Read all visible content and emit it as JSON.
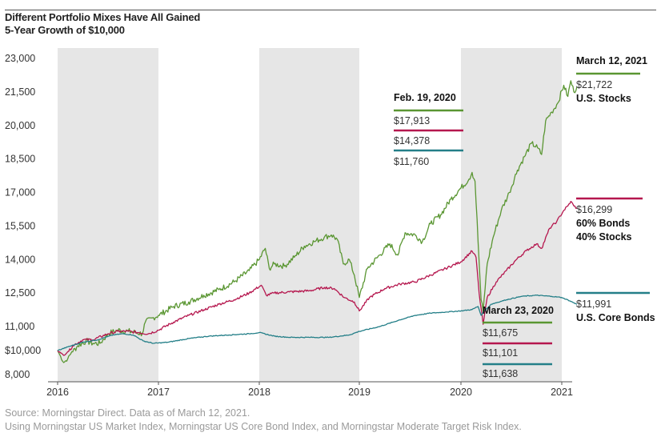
{
  "header": {
    "title": "Different Portfolio Mixes Have All Gained",
    "subtitle": "5-Year Growth of $10,000"
  },
  "footer": {
    "source": "Source: Morningstar Direct.  Data as of March 12, 2021.",
    "notes": "Using Morningstar US Market Index, Morningstar US Core Bond Index, and Morningstar Moderate Target Risk Index."
  },
  "colors": {
    "stocks": "#5a9632",
    "balanced": "#b5174e",
    "bonds": "#247f88",
    "band": "#e6e6e6"
  },
  "chart_data": {
    "type": "line",
    "title": "Different Portfolio Mixes Have All Gained",
    "subtitle": "5-Year Growth of $10,000",
    "x_ticks": [
      "2016",
      "2017",
      "2018",
      "2019",
      "2020",
      "2021"
    ],
    "y_ticks": [
      {
        "value": 23000,
        "label": "23,000"
      },
      {
        "value": 21500,
        "label": "21,500"
      },
      {
        "value": 20000,
        "label": "20,000"
      },
      {
        "value": 18500,
        "label": "18,500"
      },
      {
        "value": 17000,
        "label": "17,000"
      },
      {
        "value": 15500,
        "label": "15,500"
      },
      {
        "value": 14000,
        "label": "14,000"
      },
      {
        "value": 12500,
        "label": "12,500"
      },
      {
        "value": 11000,
        "label": "11,000"
      },
      {
        "value": 10000,
        "label": "$10,000"
      },
      {
        "value": 8000,
        "label": "8,000"
      }
    ],
    "ylim": [
      7800,
      23300
    ],
    "xlim": [
      2015.98,
      2021.2
    ],
    "shaded_years": [
      [
        2016,
        2017
      ],
      [
        2018,
        2019
      ],
      [
        2020,
        2021
      ]
    ],
    "series": [
      {
        "name": "U.S. Stocks",
        "key": "stocks",
        "points": [
          [
            2016.0,
            10000
          ],
          [
            2016.03,
            9500
          ],
          [
            2016.06,
            9000
          ],
          [
            2016.1,
            9300
          ],
          [
            2016.14,
            9900
          ],
          [
            2016.2,
            10200
          ],
          [
            2016.28,
            10400
          ],
          [
            2016.35,
            10300
          ],
          [
            2016.42,
            10300
          ],
          [
            2016.5,
            10700
          ],
          [
            2016.6,
            10850
          ],
          [
            2016.7,
            10800
          ],
          [
            2016.78,
            10750
          ],
          [
            2016.84,
            10700
          ],
          [
            2016.87,
            11200
          ],
          [
            2016.95,
            11400
          ],
          [
            2017.0,
            11500
          ],
          [
            2017.15,
            11900
          ],
          [
            2017.3,
            12100
          ],
          [
            2017.45,
            12400
          ],
          [
            2017.6,
            12650
          ],
          [
            2017.75,
            13000
          ],
          [
            2017.9,
            13500
          ],
          [
            2018.0,
            14000
          ],
          [
            2018.06,
            14500
          ],
          [
            2018.1,
            13600
          ],
          [
            2018.15,
            13800
          ],
          [
            2018.25,
            13700
          ],
          [
            2018.35,
            14100
          ],
          [
            2018.45,
            14600
          ],
          [
            2018.55,
            14800
          ],
          [
            2018.65,
            15000
          ],
          [
            2018.72,
            15100
          ],
          [
            2018.78,
            14900
          ],
          [
            2018.84,
            13800
          ],
          [
            2018.9,
            14000
          ],
          [
            2018.95,
            13300
          ],
          [
            2019.0,
            12300
          ],
          [
            2019.08,
            13600
          ],
          [
            2019.2,
            14200
          ],
          [
            2019.3,
            14700
          ],
          [
            2019.38,
            14200
          ],
          [
            2019.45,
            15200
          ],
          [
            2019.55,
            15100
          ],
          [
            2019.62,
            14800
          ],
          [
            2019.7,
            15600
          ],
          [
            2019.8,
            16000
          ],
          [
            2019.9,
            16700
          ],
          [
            2020.0,
            17200
          ],
          [
            2020.08,
            17600
          ],
          [
            2020.11,
            17900
          ],
          [
            2020.14,
            17500
          ],
          [
            2020.17,
            14800
          ],
          [
            2020.2,
            12200
          ],
          [
            2020.22,
            11675
          ],
          [
            2020.26,
            13800
          ],
          [
            2020.32,
            15000
          ],
          [
            2020.4,
            16200
          ],
          [
            2020.48,
            17000
          ],
          [
            2020.56,
            18000
          ],
          [
            2020.63,
            18600
          ],
          [
            2020.7,
            19200
          ],
          [
            2020.76,
            19000
          ],
          [
            2020.8,
            18700
          ],
          [
            2020.84,
            20200
          ],
          [
            2020.9,
            20600
          ],
          [
            2020.96,
            21000
          ],
          [
            2021.02,
            21800
          ],
          [
            2021.06,
            21300
          ],
          [
            2021.09,
            22000
          ],
          [
            2021.12,
            21500
          ],
          [
            2021.15,
            21722
          ]
        ]
      },
      {
        "name": "60% Bonds 40% Stocks",
        "key": "balanced",
        "points": [
          [
            2016.0,
            10000
          ],
          [
            2016.03,
            9800
          ],
          [
            2016.06,
            9600
          ],
          [
            2016.1,
            9900
          ],
          [
            2016.15,
            10200
          ],
          [
            2016.25,
            10450
          ],
          [
            2016.35,
            10450
          ],
          [
            2016.5,
            10700
          ],
          [
            2016.6,
            10800
          ],
          [
            2016.7,
            10800
          ],
          [
            2016.8,
            10750
          ],
          [
            2016.9,
            10700
          ],
          [
            2017.0,
            10850
          ],
          [
            2017.15,
            11200
          ],
          [
            2017.3,
            11500
          ],
          [
            2017.45,
            11750
          ],
          [
            2017.6,
            12000
          ],
          [
            2017.75,
            12200
          ],
          [
            2017.9,
            12500
          ],
          [
            2018.02,
            12850
          ],
          [
            2018.07,
            12400
          ],
          [
            2018.15,
            12500
          ],
          [
            2018.3,
            12550
          ],
          [
            2018.5,
            12600
          ],
          [
            2018.65,
            12750
          ],
          [
            2018.75,
            12700
          ],
          [
            2018.85,
            12300
          ],
          [
            2018.95,
            12100
          ],
          [
            2019.0,
            11700
          ],
          [
            2019.1,
            12300
          ],
          [
            2019.25,
            12700
          ],
          [
            2019.4,
            12900
          ],
          [
            2019.55,
            13000
          ],
          [
            2019.7,
            13300
          ],
          [
            2019.85,
            13600
          ],
          [
            2020.0,
            13900
          ],
          [
            2020.11,
            14378
          ],
          [
            2020.15,
            14100
          ],
          [
            2020.18,
            12500
          ],
          [
            2020.22,
            11101
          ],
          [
            2020.26,
            12300
          ],
          [
            2020.35,
            13000
          ],
          [
            2020.45,
            13500
          ],
          [
            2020.55,
            14000
          ],
          [
            2020.65,
            14400
          ],
          [
            2020.75,
            14700
          ],
          [
            2020.8,
            14500
          ],
          [
            2020.88,
            15400
          ],
          [
            2020.95,
            15700
          ],
          [
            2021.02,
            16200
          ],
          [
            2021.06,
            16400
          ],
          [
            2021.09,
            16600
          ],
          [
            2021.12,
            16400
          ],
          [
            2021.15,
            16299
          ]
        ]
      },
      {
        "name": "U.S. Core Bonds",
        "key": "bonds",
        "points": [
          [
            2016.0,
            10000
          ],
          [
            2016.1,
            10150
          ],
          [
            2016.25,
            10350
          ],
          [
            2016.4,
            10450
          ],
          [
            2016.55,
            10650
          ],
          [
            2016.65,
            10700
          ],
          [
            2016.75,
            10650
          ],
          [
            2016.85,
            10400
          ],
          [
            2016.95,
            10300
          ],
          [
            2017.1,
            10350
          ],
          [
            2017.3,
            10500
          ],
          [
            2017.5,
            10600
          ],
          [
            2017.7,
            10650
          ],
          [
            2017.9,
            10700
          ],
          [
            2018.0,
            10750
          ],
          [
            2018.15,
            10600
          ],
          [
            2018.3,
            10550
          ],
          [
            2018.5,
            10550
          ],
          [
            2018.7,
            10550
          ],
          [
            2018.9,
            10650
          ],
          [
            2019.0,
            10800
          ],
          [
            2019.2,
            11000
          ],
          [
            2019.4,
            11300
          ],
          [
            2019.55,
            11500
          ],
          [
            2019.7,
            11600
          ],
          [
            2019.85,
            11650
          ],
          [
            2020.0,
            11700
          ],
          [
            2020.11,
            11760
          ],
          [
            2020.17,
            11900
          ],
          [
            2020.2,
            11500
          ],
          [
            2020.22,
            11638
          ],
          [
            2020.3,
            12000
          ],
          [
            2020.45,
            12200
          ],
          [
            2020.6,
            12350
          ],
          [
            2020.75,
            12400
          ],
          [
            2020.9,
            12350
          ],
          [
            2021.0,
            12300
          ],
          [
            2021.08,
            12150
          ],
          [
            2021.15,
            11991
          ]
        ]
      }
    ],
    "annotations": [
      {
        "name": "feb-2020",
        "date": "Feb. 19, 2020",
        "values": [
          {
            "text": "$17,913",
            "key": "stocks"
          },
          {
            "text": "$14,378",
            "key": "balanced"
          },
          {
            "text": "$11,760",
            "key": "bonds"
          }
        ]
      },
      {
        "name": "mar-2020",
        "date": "March 23, 2020",
        "values": [
          {
            "text": "$11,675",
            "key": "stocks"
          },
          {
            "text": "$11,101",
            "key": "balanced"
          },
          {
            "text": "$11,638",
            "key": "bonds"
          }
        ]
      },
      {
        "name": "mar-2021",
        "date": "March 12, 2021",
        "values": [
          {
            "text": "$21,722",
            "key": "stocks",
            "label": "U.S. Stocks"
          },
          {
            "text": "$16,299",
            "key": "balanced",
            "label": "60% Bonds",
            "label2": "40% Stocks"
          },
          {
            "text": "$11,991",
            "key": "bonds",
            "label": "U.S. Core Bonds"
          }
        ]
      }
    ]
  }
}
